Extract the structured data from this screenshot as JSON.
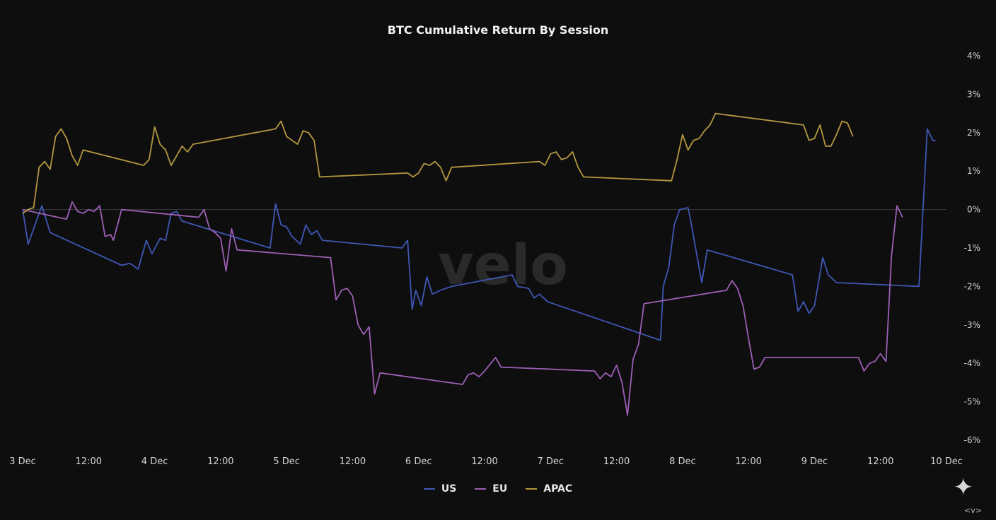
{
  "chart_data": {
    "type": "line",
    "title": "BTC Cumulative Return By Session",
    "watermark": "velo",
    "x_ticks": [
      "3 Dec",
      "12:00",
      "4 Dec",
      "12:00",
      "5 Dec",
      "12:00",
      "6 Dec",
      "12:00",
      "7 Dec",
      "12:00",
      "8 Dec",
      "12:00",
      "9 Dec",
      "12:00",
      "10 Dec"
    ],
    "y_ticks": [
      "4%",
      "3%",
      "2%",
      "1%",
      "0%",
      "-1%",
      "-2%",
      "-3%",
      "-4%",
      "-5%",
      "-6%"
    ],
    "ylim": [
      -6,
      4
    ],
    "xlim_days": [
      "3 Dec 00:00",
      "10 Dec 00:00"
    ],
    "y_unit": "%",
    "grid": false,
    "zero_line": true,
    "legend": "bottom",
    "series": [
      {
        "name": "US",
        "color": "#3f57b4",
        "points": [
          [
            "3 Dec 00:00",
            0.0
          ],
          [
            "3 Dec 01:00",
            -0.9
          ],
          [
            "3 Dec 03:30",
            0.1
          ],
          [
            "3 Dec 05:00",
            -0.6
          ],
          [
            "3 Dec 18:00",
            -1.45
          ],
          [
            "3 Dec 19:30",
            -1.4
          ],
          [
            "3 Dec 21:00",
            -1.55
          ],
          [
            "3 Dec 22:30",
            -0.8
          ],
          [
            "3 Dec 23:30",
            -1.15
          ],
          [
            "4 Dec 01:00",
            -0.75
          ],
          [
            "4 Dec 02:00",
            -0.8
          ],
          [
            "4 Dec 03:00",
            -0.1
          ],
          [
            "4 Dec 04:00",
            -0.05
          ],
          [
            "4 Dec 05:00",
            -0.3
          ],
          [
            "4 Dec 21:00",
            -1.0
          ],
          [
            "4 Dec 22:00",
            0.15
          ],
          [
            "4 Dec 23:00",
            -0.4
          ],
          [
            "5 Dec 00:00",
            -0.45
          ],
          [
            "5 Dec 01:00",
            -0.7
          ],
          [
            "5 Dec 02:30",
            -0.9
          ],
          [
            "5 Dec 03:30",
            -0.4
          ],
          [
            "5 Dec 04:30",
            -0.65
          ],
          [
            "5 Dec 05:30",
            -0.55
          ],
          [
            "5 Dec 06:30",
            -0.8
          ],
          [
            "5 Dec 21:00",
            -1.0
          ],
          [
            "5 Dec 22:00",
            -0.8
          ],
          [
            "5 Dec 22:50",
            -2.6
          ],
          [
            "5 Dec 23:30",
            -2.1
          ],
          [
            "6 Dec 00:30",
            -2.5
          ],
          [
            "6 Dec 01:30",
            -1.75
          ],
          [
            "6 Dec 02:30",
            -2.2
          ],
          [
            "6 Dec 04:00",
            -2.1
          ],
          [
            "6 Dec 06:00",
            -2.0
          ],
          [
            "6 Dec 17:00",
            -1.7
          ],
          [
            "6 Dec 18:00",
            -2.0
          ],
          [
            "6 Dec 20:00",
            -2.05
          ],
          [
            "6 Dec 21:00",
            -2.3
          ],
          [
            "6 Dec 22:00",
            -2.2
          ],
          [
            "6 Dec 23:30",
            -2.4
          ],
          [
            "7 Dec 20:00",
            -3.4
          ],
          [
            "7 Dec 20:30",
            -2.0
          ],
          [
            "7 Dec 21:30",
            -1.5
          ],
          [
            "7 Dec 22:30",
            -0.4
          ],
          [
            "7 Dec 23:30",
            0.0
          ],
          [
            "8 Dec 01:00",
            0.05
          ],
          [
            "8 Dec 01:30",
            -0.3
          ],
          [
            "8 Dec 03:30",
            -1.9
          ],
          [
            "8 Dec 04:30",
            -1.05
          ],
          [
            "8 Dec 20:00",
            -1.7
          ],
          [
            "8 Dec 21:00",
            -2.65
          ],
          [
            "8 Dec 22:00",
            -2.4
          ],
          [
            "8 Dec 23:00",
            -2.7
          ],
          [
            "9 Dec 00:00",
            -2.5
          ],
          [
            "9 Dec 01:30",
            -1.25
          ],
          [
            "9 Dec 02:30",
            -1.7
          ],
          [
            "9 Dec 04:00",
            -1.9
          ],
          [
            "9 Dec 19:00",
            -2.0
          ],
          [
            "9 Dec 20:30",
            2.1
          ],
          [
            "9 Dec 21:30",
            1.8
          ],
          [
            "9 Dec 22:00",
            1.8
          ]
        ]
      },
      {
        "name": "EU",
        "color": "#9c5fb4",
        "points": [
          [
            "3 Dec 00:00",
            0.0
          ],
          [
            "3 Dec 08:00",
            -0.25
          ],
          [
            "3 Dec 09:00",
            0.2
          ],
          [
            "3 Dec 10:00",
            -0.05
          ],
          [
            "3 Dec 11:00",
            -0.1
          ],
          [
            "3 Dec 12:00",
            0.0
          ],
          [
            "3 Dec 13:00",
            -0.05
          ],
          [
            "3 Dec 14:00",
            0.1
          ],
          [
            "3 Dec 15:00",
            -0.7
          ],
          [
            "3 Dec 16:00",
            -0.65
          ],
          [
            "3 Dec 16:30",
            -0.8
          ],
          [
            "3 Dec 18:00",
            0.0
          ],
          [
            "4 Dec 08:00",
            -0.2
          ],
          [
            "4 Dec 09:00",
            0.0
          ],
          [
            "4 Dec 10:00",
            -0.5
          ],
          [
            "4 Dec 11:00",
            -0.6
          ],
          [
            "4 Dec 12:00",
            -0.75
          ],
          [
            "4 Dec 13:00",
            -1.6
          ],
          [
            "4 Dec 14:00",
            -0.5
          ],
          [
            "4 Dec 15:00",
            -1.05
          ],
          [
            "5 Dec 08:00",
            -1.25
          ],
          [
            "5 Dec 09:00",
            -2.35
          ],
          [
            "5 Dec 10:00",
            -2.1
          ],
          [
            "5 Dec 11:00",
            -2.05
          ],
          [
            "5 Dec 12:00",
            -2.25
          ],
          [
            "5 Dec 13:00",
            -3.0
          ],
          [
            "5 Dec 14:00",
            -3.25
          ],
          [
            "5 Dec 15:00",
            -3.05
          ],
          [
            "5 Dec 16:00",
            -4.8
          ],
          [
            "5 Dec 17:00",
            -4.25
          ],
          [
            "6 Dec 08:00",
            -4.55
          ],
          [
            "6 Dec 09:00",
            -4.3
          ],
          [
            "6 Dec 10:00",
            -4.25
          ],
          [
            "6 Dec 11:00",
            -4.35
          ],
          [
            "6 Dec 12:00",
            -4.2
          ],
          [
            "6 Dec 14:00",
            -3.85
          ],
          [
            "6 Dec 15:00",
            -4.1
          ],
          [
            "7 Dec 08:00",
            -4.2
          ],
          [
            "7 Dec 09:00",
            -4.4
          ],
          [
            "7 Dec 10:00",
            -4.25
          ],
          [
            "7 Dec 11:00",
            -4.35
          ],
          [
            "7 Dec 12:00",
            -4.05
          ],
          [
            "7 Dec 13:00",
            -4.5
          ],
          [
            "7 Dec 14:00",
            -5.35
          ],
          [
            "7 Dec 15:00",
            -3.9
          ],
          [
            "7 Dec 16:00",
            -3.5
          ],
          [
            "7 Dec 17:00",
            -2.45
          ],
          [
            "8 Dec 08:00",
            -2.1
          ],
          [
            "8 Dec 09:00",
            -1.85
          ],
          [
            "8 Dec 10:00",
            -2.05
          ],
          [
            "8 Dec 11:00",
            -2.5
          ],
          [
            "8 Dec 12:00",
            -3.35
          ],
          [
            "8 Dec 13:00",
            -4.15
          ],
          [
            "8 Dec 14:00",
            -4.1
          ],
          [
            "8 Dec 15:00",
            -3.85
          ],
          [
            "9 Dec 08:00",
            -3.85
          ],
          [
            "9 Dec 09:00",
            -4.2
          ],
          [
            "9 Dec 10:00",
            -4.0
          ],
          [
            "9 Dec 11:00",
            -3.95
          ],
          [
            "9 Dec 12:00",
            -3.75
          ],
          [
            "9 Dec 13:00",
            -3.95
          ],
          [
            "9 Dec 14:00",
            -1.2
          ],
          [
            "9 Dec 15:00",
            0.1
          ],
          [
            "9 Dec 16:00",
            -0.2
          ]
        ]
      },
      {
        "name": "APAC",
        "color": "#b5983f",
        "points": [
          [
            "3 Dec 00:00",
            -0.1
          ],
          [
            "3 Dec 01:00",
            0.0
          ],
          [
            "3 Dec 02:00",
            0.05
          ],
          [
            "3 Dec 03:00",
            1.1
          ],
          [
            "3 Dec 04:00",
            1.25
          ],
          [
            "3 Dec 05:00",
            1.05
          ],
          [
            "3 Dec 06:00",
            1.9
          ],
          [
            "3 Dec 07:00",
            2.1
          ],
          [
            "3 Dec 08:00",
            1.85
          ],
          [
            "3 Dec 09:00",
            1.4
          ],
          [
            "3 Dec 10:00",
            1.15
          ],
          [
            "3 Dec 11:00",
            1.55
          ],
          [
            "3 Dec 22:00",
            1.15
          ],
          [
            "3 Dec 23:00",
            1.3
          ],
          [
            "4 Dec 00:00",
            2.15
          ],
          [
            "4 Dec 01:00",
            1.7
          ],
          [
            "4 Dec 02:00",
            1.55
          ],
          [
            "4 Dec 03:00",
            1.15
          ],
          [
            "4 Dec 04:00",
            1.4
          ],
          [
            "4 Dec 05:00",
            1.65
          ],
          [
            "4 Dec 06:00",
            1.5
          ],
          [
            "4 Dec 07:00",
            1.7
          ],
          [
            "4 Dec 22:00",
            2.1
          ],
          [
            "4 Dec 23:00",
            2.3
          ],
          [
            "5 Dec 00:00",
            1.9
          ],
          [
            "5 Dec 01:00",
            1.8
          ],
          [
            "5 Dec 02:00",
            1.7
          ],
          [
            "5 Dec 03:00",
            2.05
          ],
          [
            "5 Dec 04:00",
            2.0
          ],
          [
            "5 Dec 05:00",
            1.8
          ],
          [
            "5 Dec 06:00",
            0.85
          ],
          [
            "5 Dec 22:00",
            0.95
          ],
          [
            "5 Dec 23:00",
            0.85
          ],
          [
            "6 Dec 00:00",
            0.95
          ],
          [
            "6 Dec 01:00",
            1.2
          ],
          [
            "6 Dec 02:00",
            1.15
          ],
          [
            "6 Dec 03:00",
            1.25
          ],
          [
            "6 Dec 04:00",
            1.1
          ],
          [
            "6 Dec 05:00",
            0.75
          ],
          [
            "6 Dec 06:00",
            1.1
          ],
          [
            "6 Dec 22:00",
            1.25
          ],
          [
            "6 Dec 23:00",
            1.15
          ],
          [
            "7 Dec 00:00",
            1.45
          ],
          [
            "7 Dec 01:00",
            1.5
          ],
          [
            "7 Dec 02:00",
            1.3
          ],
          [
            "7 Dec 03:00",
            1.35
          ],
          [
            "7 Dec 04:00",
            1.5
          ],
          [
            "7 Dec 05:00",
            1.1
          ],
          [
            "7 Dec 06:00",
            0.85
          ],
          [
            "7 Dec 22:00",
            0.75
          ],
          [
            "7 Dec 23:00",
            1.3
          ],
          [
            "8 Dec 00:00",
            1.95
          ],
          [
            "8 Dec 01:00",
            1.55
          ],
          [
            "8 Dec 02:00",
            1.8
          ],
          [
            "8 Dec 03:00",
            1.85
          ],
          [
            "8 Dec 04:00",
            2.05
          ],
          [
            "8 Dec 05:00",
            2.2
          ],
          [
            "8 Dec 06:00",
            2.5
          ],
          [
            "8 Dec 22:00",
            2.2
          ],
          [
            "8 Dec 23:00",
            1.8
          ],
          [
            "9 Dec 00:00",
            1.85
          ],
          [
            "9 Dec 01:00",
            2.2
          ],
          [
            "9 Dec 02:00",
            1.65
          ],
          [
            "9 Dec 03:00",
            1.65
          ],
          [
            "9 Dec 04:00",
            1.95
          ],
          [
            "9 Dec 05:00",
            2.3
          ],
          [
            "9 Dec 06:00",
            2.25
          ],
          [
            "9 Dec 07:00",
            1.9
          ]
        ]
      }
    ]
  },
  "legend": [
    {
      "label": "US",
      "color": "#3f57b4"
    },
    {
      "label": "EU",
      "color": "#9c5fb4"
    },
    {
      "label": "APAC",
      "color": "#b5983f"
    }
  ],
  "corner_glyphs": "<v>"
}
